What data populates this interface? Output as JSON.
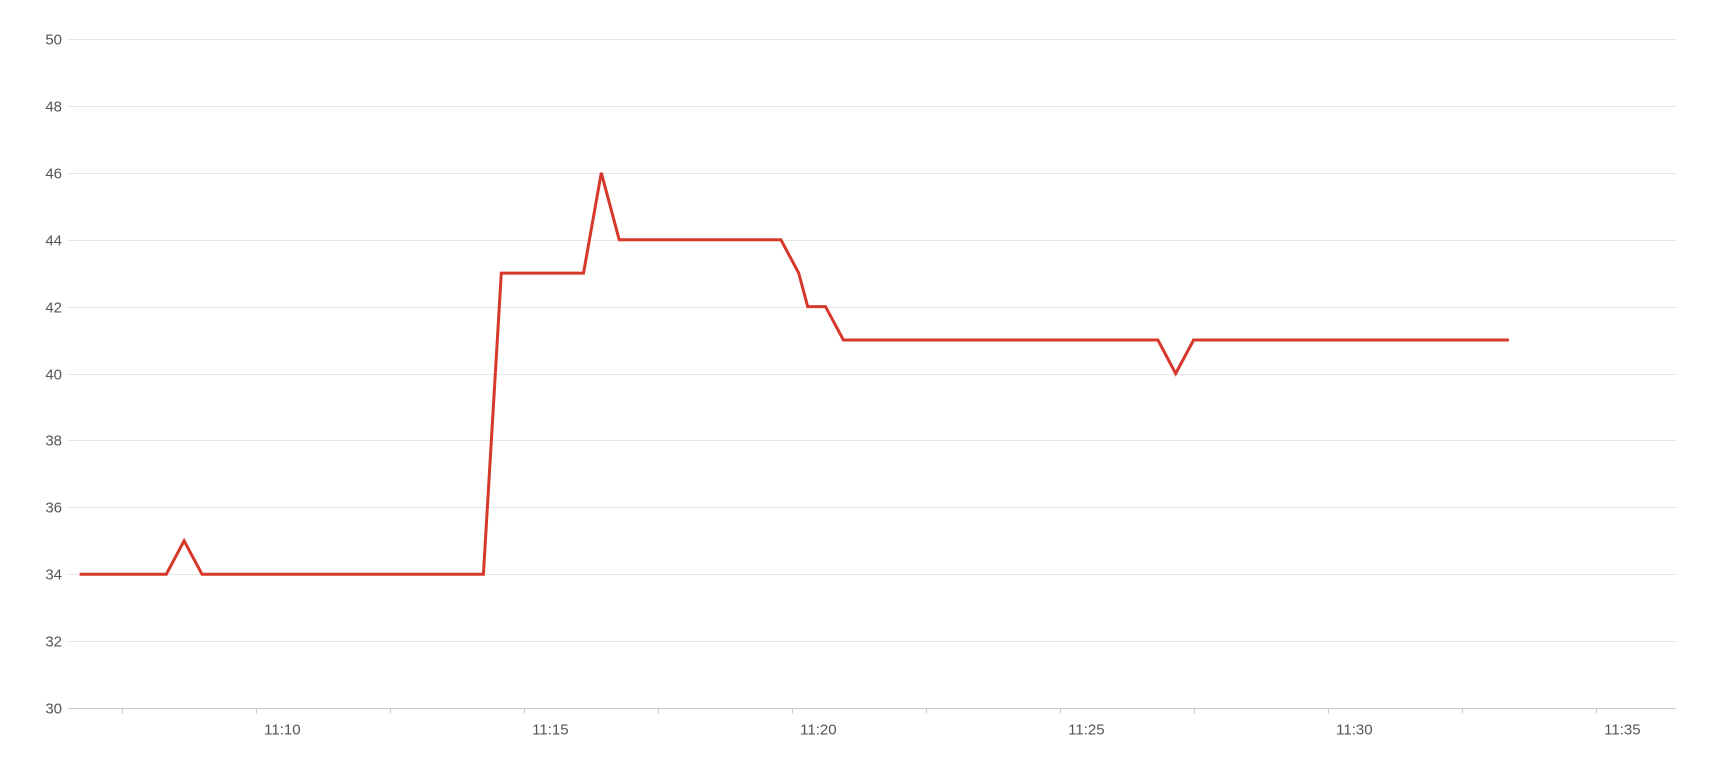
{
  "chart_data": {
    "type": "line",
    "title": "",
    "xlabel": "",
    "ylabel": "",
    "ylim": [
      30,
      50
    ],
    "yticks": [
      "30",
      "32",
      "34",
      "36",
      "38",
      "40",
      "42",
      "44",
      "46",
      "48",
      "50"
    ],
    "xlim": [
      "11:06",
      "11:36"
    ],
    "xticks": [
      "11:10",
      "11:15",
      "11:20",
      "11:25",
      "11:30",
      "11:35"
    ],
    "grid": true,
    "legend": "none",
    "line_color": "#d6392b",
    "series": [
      {
        "x": [
          "11:06:13",
          "11:07:50",
          "11:08:10",
          "11:08:30",
          "11:13:45",
          "11:14:05",
          "11:15:37",
          "11:15:57",
          "11:16:17",
          "11:19:18",
          "11:19:38",
          "11:19:48",
          "11:20:08",
          "11:20:28",
          "11:26:20",
          "11:26:40",
          "11:27:00",
          "11:32:53"
        ],
        "values": [
          34,
          34,
          35,
          34,
          34,
          43,
          43,
          46,
          44,
          44,
          43,
          42,
          42,
          41,
          41,
          40,
          41,
          41
        ]
      }
    ]
  }
}
